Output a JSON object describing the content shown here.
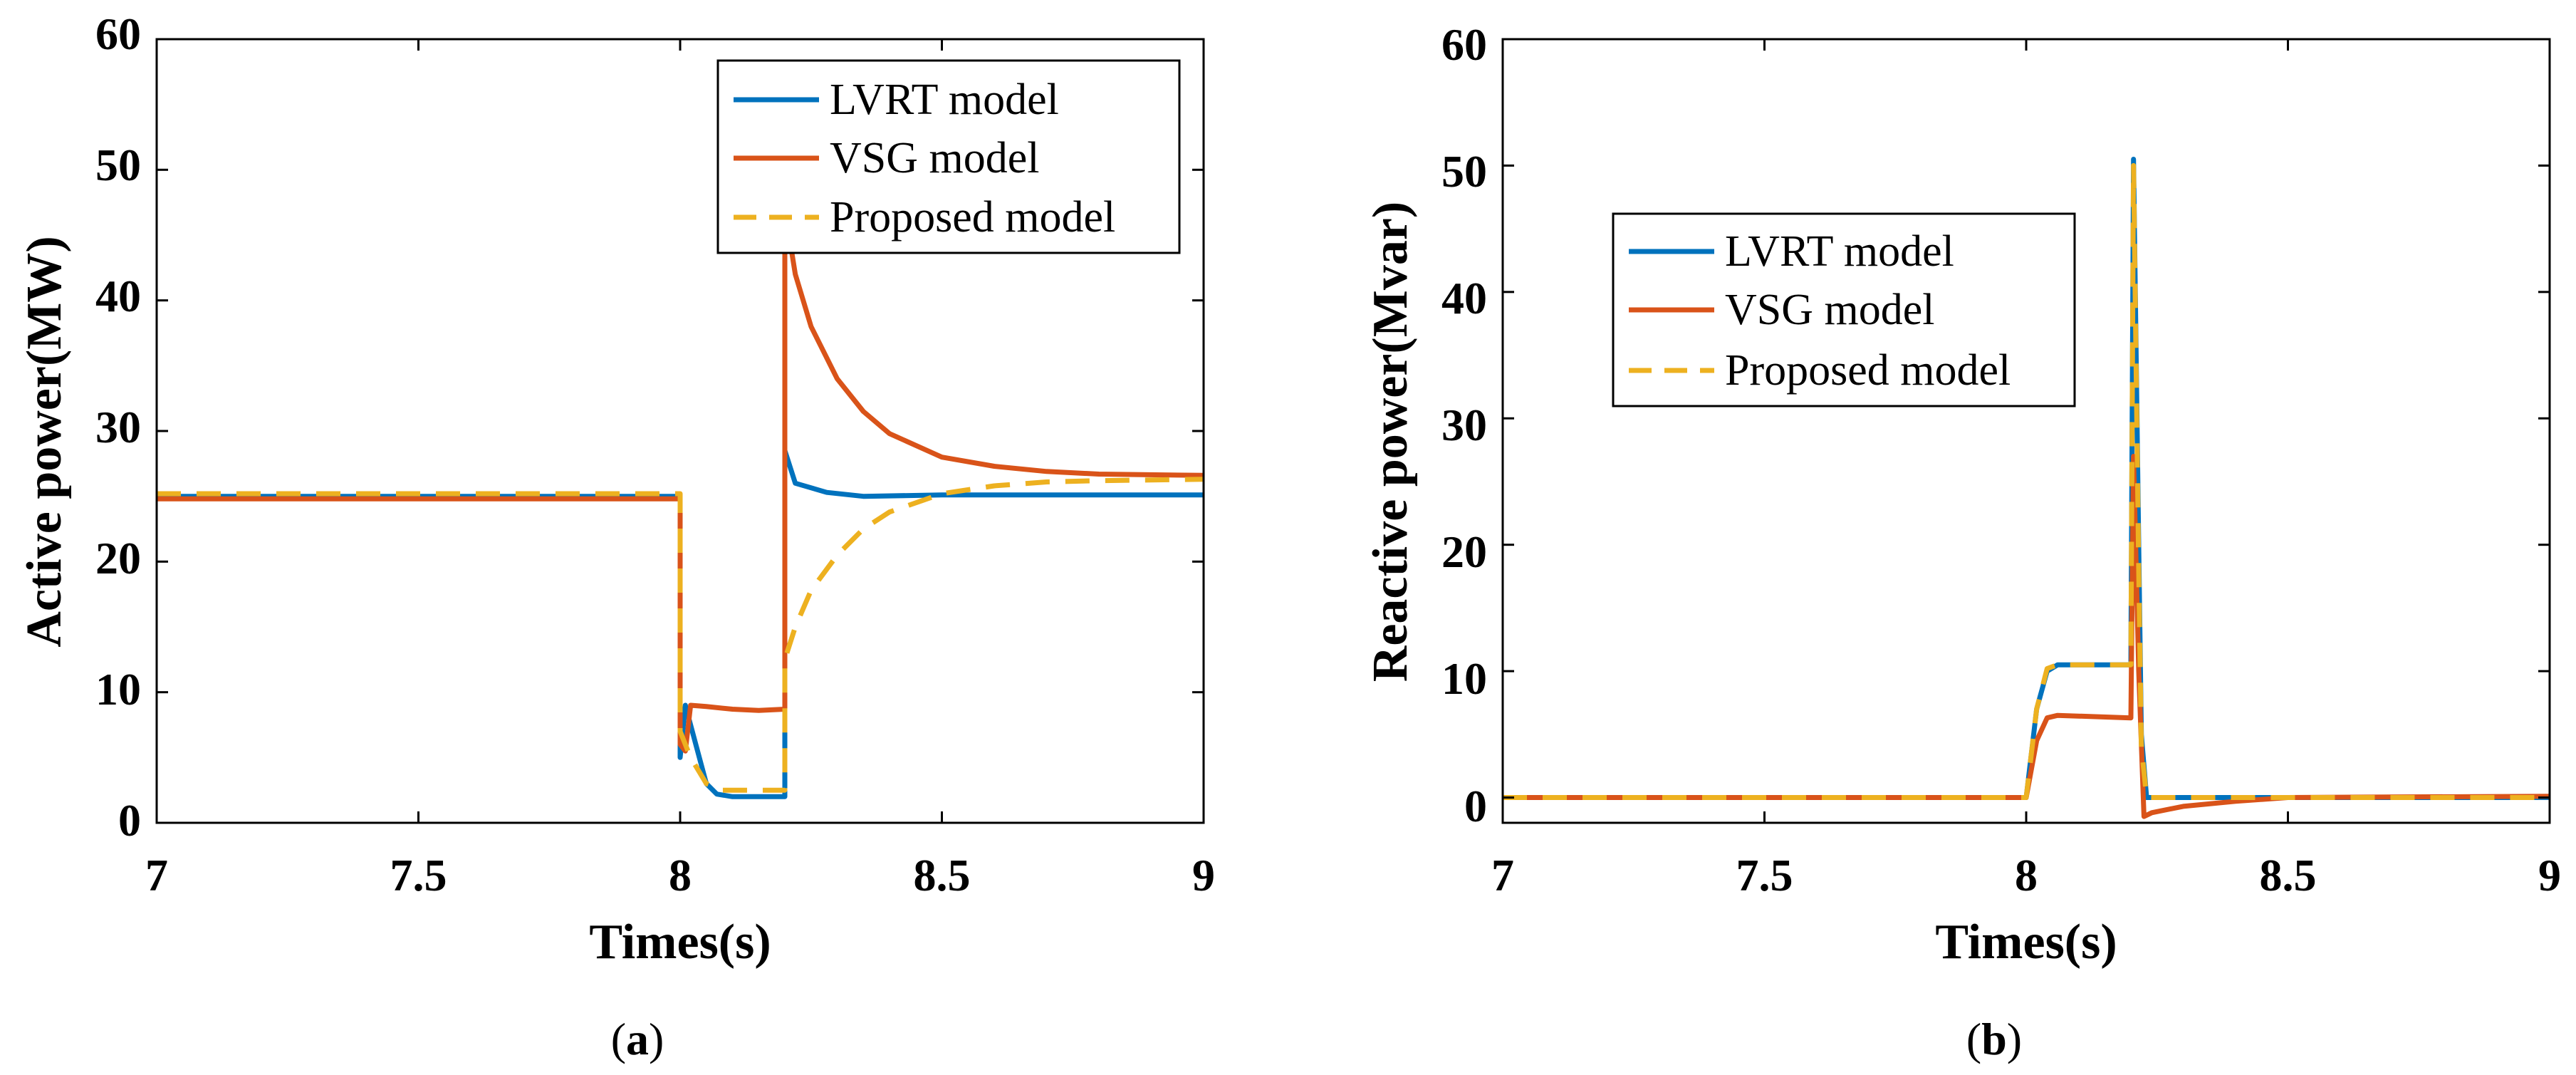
{
  "chart_data": [
    {
      "type": "line",
      "panel_label": "a",
      "xlabel": "Times(s)",
      "ylabel": "Active power(MW)",
      "xlim": [
        7,
        9
      ],
      "ylim": [
        0,
        60
      ],
      "x_ticks": [
        "7",
        "7.5",
        "8",
        "8.5",
        "9"
      ],
      "y_ticks": [
        "0",
        "10",
        "20",
        "30",
        "40",
        "50",
        "60"
      ],
      "legend_position": "top-right",
      "series": [
        {
          "name": "LVRT model",
          "color": "#0072BD",
          "dash": "solid",
          "points": [
            [
              7.0,
              25.0
            ],
            [
              8.0,
              25.0
            ],
            [
              8.0,
              5.0
            ],
            [
              8.01,
              9.0
            ],
            [
              8.03,
              6.0
            ],
            [
              8.05,
              3.0
            ],
            [
              8.07,
              2.2
            ],
            [
              8.1,
              2.0
            ],
            [
              8.2,
              2.0
            ],
            [
              8.2,
              28.5
            ],
            [
              8.22,
              26.0
            ],
            [
              8.28,
              25.3
            ],
            [
              8.35,
              25.0
            ],
            [
              8.5,
              25.1
            ],
            [
              9.0,
              25.1
            ]
          ]
        },
        {
          "name": "VSG model",
          "color": "#D95319",
          "dash": "solid",
          "points": [
            [
              7.0,
              24.8
            ],
            [
              8.0,
              24.8
            ],
            [
              8.0,
              6.0
            ],
            [
              8.01,
              5.5
            ],
            [
              8.02,
              9.0
            ],
            [
              8.05,
              8.9
            ],
            [
              8.1,
              8.7
            ],
            [
              8.15,
              8.6
            ],
            [
              8.2,
              8.7
            ],
            [
              8.2,
              47.0
            ],
            [
              8.22,
              42.0
            ],
            [
              8.25,
              38.0
            ],
            [
              8.3,
              34.0
            ],
            [
              8.35,
              31.5
            ],
            [
              8.4,
              29.8
            ],
            [
              8.5,
              28.0
            ],
            [
              8.6,
              27.3
            ],
            [
              8.7,
              26.9
            ],
            [
              8.8,
              26.7
            ],
            [
              9.0,
              26.6
            ]
          ]
        },
        {
          "name": "Proposed model",
          "color": "#EDB120",
          "dash": "dashed",
          "points": [
            [
              7.0,
              25.2
            ],
            [
              8.0,
              25.2
            ],
            [
              8.0,
              7.0
            ],
            [
              8.02,
              5.0
            ],
            [
              8.05,
              3.0
            ],
            [
              8.08,
              2.5
            ],
            [
              8.2,
              2.5
            ],
            [
              8.2,
              12.5
            ],
            [
              8.22,
              15.0
            ],
            [
              8.25,
              17.8
            ],
            [
              8.3,
              20.5
            ],
            [
              8.35,
              22.5
            ],
            [
              8.4,
              23.8
            ],
            [
              8.5,
              25.2
            ],
            [
              8.6,
              25.8
            ],
            [
              8.7,
              26.1
            ],
            [
              8.8,
              26.2
            ],
            [
              9.0,
              26.3
            ]
          ]
        }
      ]
    },
    {
      "type": "line",
      "panel_label": "b",
      "xlabel": "Times(s)",
      "ylabel": "Reactive power(Mvar)",
      "xlim": [
        7,
        9
      ],
      "ylim": [
        -2,
        60
      ],
      "x_ticks": [
        "7",
        "7.5",
        "8",
        "8.5",
        "9"
      ],
      "y_ticks": [
        "0",
        "10",
        "20",
        "30",
        "40",
        "50",
        "60"
      ],
      "legend_position": "top-left",
      "series": [
        {
          "name": "LVRT model",
          "color": "#0072BD",
          "dash": "solid",
          "points": [
            [
              7.0,
              0.0
            ],
            [
              8.0,
              0.0
            ],
            [
              8.02,
              7.0
            ],
            [
              8.04,
              10.0
            ],
            [
              8.06,
              10.5
            ],
            [
              8.2,
              10.5
            ],
            [
              8.205,
              50.5
            ],
            [
              8.215,
              20.0
            ],
            [
              8.22,
              5.0
            ],
            [
              8.23,
              0.0
            ],
            [
              9.0,
              0.0
            ]
          ]
        },
        {
          "name": "VSG model",
          "color": "#D95319",
          "dash": "solid",
          "points": [
            [
              7.0,
              0.0
            ],
            [
              8.0,
              0.0
            ],
            [
              8.02,
              4.5
            ],
            [
              8.04,
              6.3
            ],
            [
              8.06,
              6.5
            ],
            [
              8.2,
              6.3
            ],
            [
              8.205,
              27.0
            ],
            [
              8.215,
              10.0
            ],
            [
              8.225,
              -1.5
            ],
            [
              8.24,
              -1.2
            ],
            [
              8.3,
              -0.7
            ],
            [
              8.4,
              -0.3
            ],
            [
              8.5,
              0.0
            ],
            [
              9.0,
              0.1
            ]
          ]
        },
        {
          "name": "Proposed model",
          "color": "#EDB120",
          "dash": "dashed",
          "points": [
            [
              7.0,
              0.0
            ],
            [
              8.0,
              0.0
            ],
            [
              8.02,
              7.0
            ],
            [
              8.04,
              10.2
            ],
            [
              8.06,
              10.5
            ],
            [
              8.2,
              10.5
            ],
            [
              8.205,
              50.0
            ],
            [
              8.215,
              18.0
            ],
            [
              8.22,
              4.0
            ],
            [
              8.23,
              0.0
            ],
            [
              9.0,
              0.0
            ]
          ]
        }
      ]
    }
  ]
}
